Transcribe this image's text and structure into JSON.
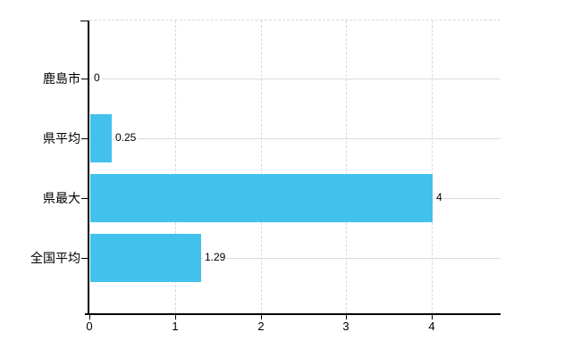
{
  "chart_data": {
    "type": "bar",
    "orientation": "horizontal",
    "title": "",
    "xlabel": "",
    "ylabel": "",
    "categories": [
      "鹿島市",
      "県平均",
      "県最大",
      "全国平均"
    ],
    "values": [
      0,
      0.25,
      4,
      1.29
    ],
    "value_labels": [
      "0",
      "0.25",
      "4",
      "1.29"
    ],
    "x_ticks": [
      0,
      1,
      2,
      3,
      4
    ],
    "x_tick_labels": [
      "0",
      "1",
      "2",
      "3",
      "4"
    ],
    "xlim": [
      0,
      4.8
    ],
    "legend": "none",
    "grid": {
      "vertical": "dashed",
      "horizontal": "solid",
      "plot_top_border": "dashed"
    },
    "colors": {
      "bar": "#42c1ed",
      "axis": "#000000",
      "text": "#000000",
      "grid_vertical": "#d8d8d8",
      "grid_horizontal": "#d9ded9",
      "plot_border": "#d8d8d8",
      "background": "#ffffff"
    }
  }
}
